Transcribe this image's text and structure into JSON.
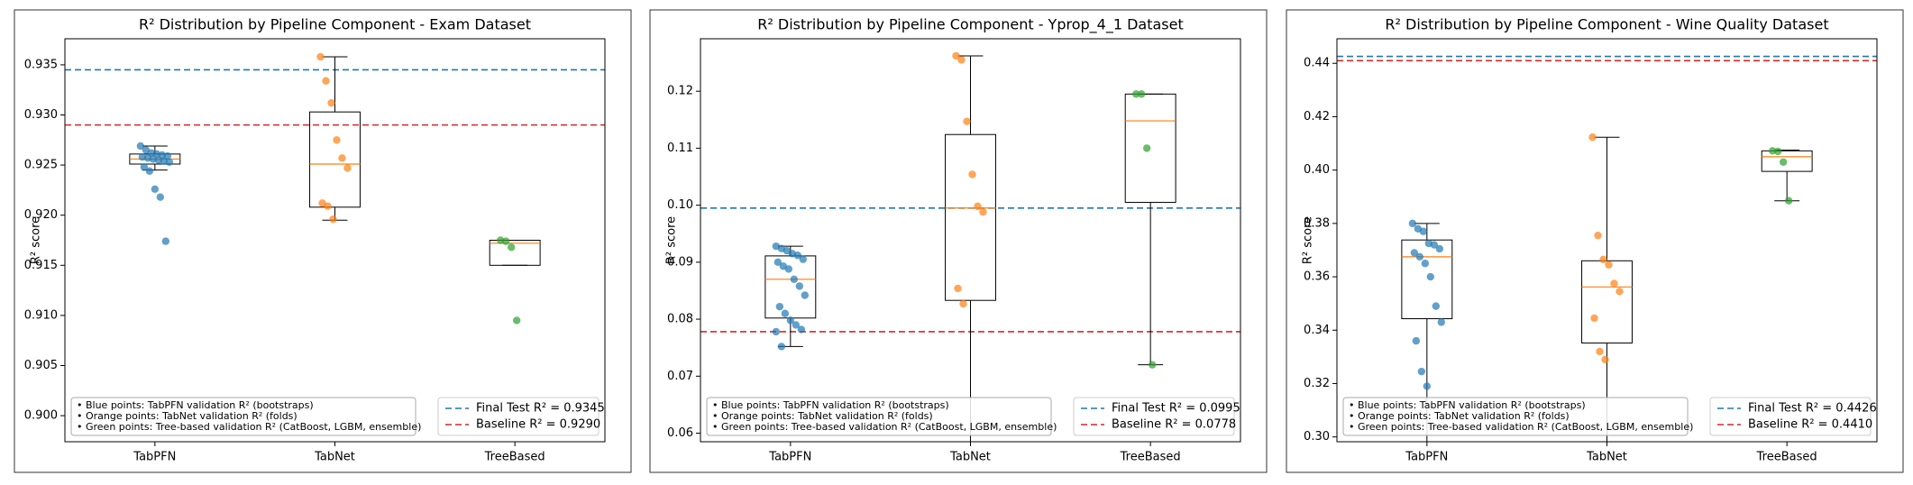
{
  "chart_data": [
    {
      "type": "box",
      "title": "R² Distribution by Pipeline Component - Exam Dataset",
      "y_label": "R² score",
      "categories": [
        "TabPFN",
        "TabNet",
        "TreeBased"
      ],
      "ylim": [
        0.8974,
        0.9376
      ],
      "yticks": [
        {
          "value": 0.9,
          "label": "0.900"
        },
        {
          "value": 0.905,
          "label": "0.905"
        },
        {
          "value": 0.91,
          "label": "0.910"
        },
        {
          "value": 0.915,
          "label": "0.915"
        },
        {
          "value": 0.92,
          "label": "0.920"
        },
        {
          "value": 0.925,
          "label": "0.925"
        },
        {
          "value": 0.93,
          "label": "0.930"
        },
        {
          "value": 0.935,
          "label": "0.935"
        }
      ],
      "median_color": "#ff7f0e",
      "boxes": [
        {
          "low": 0.9245,
          "q1": 0.9251,
          "median": 0.9256,
          "q3": 0.9261,
          "high": 0.9269,
          "color": "#1f77b4",
          "points": [
            0.9269,
            0.9265,
            0.9262,
            0.9261,
            0.926,
            0.9259,
            0.9258,
            0.9257,
            0.9256,
            0.9255,
            0.9254,
            0.9253,
            0.9248,
            0.9244,
            0.9226,
            0.9218,
            0.9174
          ]
        },
        {
          "low": 0.9195,
          "q1": 0.9208,
          "median": 0.9251,
          "q3": 0.9303,
          "high": 0.9358,
          "color": "#ff7f0e",
          "points": [
            0.9358,
            0.9334,
            0.9312,
            0.9275,
            0.9257,
            0.9247,
            0.9212,
            0.9209,
            0.9196
          ]
        },
        {
          "low": 0.915,
          "q1": 0.915,
          "median": 0.9172,
          "q3": 0.9175,
          "high": 0.9175,
          "color": "#2ca02c",
          "points": [
            0.9175,
            0.9174,
            0.9168,
            0.9095
          ]
        }
      ],
      "reference_lines": [
        {
          "label": "Final Test R² = 0.9345",
          "value": 0.9345,
          "color": "#1f77b4"
        },
        {
          "label": "Baseline R² = 0.9290",
          "value": 0.929,
          "color": "#d62728"
        }
      ],
      "legend": "lower right",
      "notes": [
        "• Blue points: TabPFN validation R² (bootstraps)",
        "• Orange points: TabNet validation R² (folds)",
        "• Green points: Tree-based validation R² (CatBoost, LGBM, ensemble)"
      ]
    },
    {
      "type": "box",
      "title": "R² Distribution by Pipeline Component - Yprop_4_1 Dataset",
      "y_label": "R² score",
      "categories": [
        "TabPFN",
        "TabNet",
        "TreeBased"
      ],
      "ylim": [
        0.0585,
        0.1292
      ],
      "yticks": [
        {
          "value": 0.06,
          "label": "0.06"
        },
        {
          "value": 0.07,
          "label": "0.07"
        },
        {
          "value": 0.08,
          "label": "0.08"
        },
        {
          "value": 0.09,
          "label": "0.09"
        },
        {
          "value": 0.1,
          "label": "0.10"
        },
        {
          "value": 0.11,
          "label": "0.11"
        },
        {
          "value": 0.12,
          "label": "0.12"
        }
      ],
      "median_color": "#ff7f0e",
      "boxes": [
        {
          "low": 0.0752,
          "q1": 0.0802,
          "median": 0.087,
          "q3": 0.0911,
          "high": 0.0928,
          "color": "#1f77b4",
          "points": [
            0.0928,
            0.0924,
            0.092,
            0.0915,
            0.0912,
            0.0905,
            0.09,
            0.0893,
            0.0888,
            0.087,
            0.0858,
            0.0842,
            0.0822,
            0.081,
            0.0798,
            0.079,
            0.0782,
            0.0778,
            0.0752
          ]
        },
        {
          "low": 0.057,
          "q1": 0.0833,
          "median": 0.0995,
          "q3": 0.1124,
          "high": 0.1262,
          "color": "#ff7f0e",
          "points": [
            0.1262,
            0.1255,
            0.1147,
            0.1054,
            0.0998,
            0.0988,
            0.0854,
            0.0827
          ]
        },
        {
          "low": 0.072,
          "q1": 0.1005,
          "median": 0.1148,
          "q3": 0.1195,
          "high": 0.1195,
          "color": "#2ca02c",
          "points": [
            0.1195,
            0.1195,
            0.11,
            0.072
          ]
        }
      ],
      "reference_lines": [
        {
          "label": "Final Test R² = 0.0995",
          "value": 0.0995,
          "color": "#1f77b4"
        },
        {
          "label": "Baseline R² = 0.0778",
          "value": 0.0778,
          "color": "#d62728"
        }
      ],
      "legend": "lower right",
      "notes": [
        "• Blue points: TabPFN validation R² (bootstraps)",
        "• Orange points: TabNet validation R² (folds)",
        "• Green points: Tree-based validation R² (CatBoost, LGBM, ensemble)"
      ]
    },
    {
      "type": "box",
      "title": "R² Distribution by Pipeline Component - Wine Quality Dataset",
      "y_label": "R² score",
      "categories": [
        "TabPFN",
        "TabNet",
        "TreeBased"
      ],
      "ylim": [
        0.2982,
        0.4492
      ],
      "yticks": [
        {
          "value": 0.3,
          "label": "0.30"
        },
        {
          "value": 0.32,
          "label": "0.32"
        },
        {
          "value": 0.34,
          "label": "0.34"
        },
        {
          "value": 0.36,
          "label": "0.36"
        },
        {
          "value": 0.38,
          "label": "0.38"
        },
        {
          "value": 0.4,
          "label": "0.40"
        },
        {
          "value": 0.42,
          "label": "0.42"
        },
        {
          "value": 0.44,
          "label": "0.44"
        }
      ],
      "median_color": "#ff7f0e",
      "boxes": [
        {
          "low": 0.296,
          "q1": 0.3443,
          "median": 0.3675,
          "q3": 0.3738,
          "high": 0.38,
          "color": "#1f77b4",
          "points": [
            0.38,
            0.378,
            0.377,
            0.3725,
            0.372,
            0.3705,
            0.369,
            0.3675,
            0.365,
            0.36,
            0.349,
            0.343,
            0.336,
            0.3245,
            0.319
          ]
        },
        {
          "low": 0.29,
          "q1": 0.3352,
          "median": 0.3562,
          "q3": 0.366,
          "high": 0.4123,
          "color": "#ff7f0e",
          "points": [
            0.4123,
            0.3755,
            0.3665,
            0.3645,
            0.3575,
            0.3545,
            0.3445,
            0.332,
            0.329
          ]
        },
        {
          "low": 0.3885,
          "q1": 0.3995,
          "median": 0.405,
          "q3": 0.4072,
          "high": 0.4075,
          "color": "#2ca02c",
          "points": [
            0.4072,
            0.407,
            0.403,
            0.3885
          ]
        }
      ],
      "reference_lines": [
        {
          "label": "Final Test R² = 0.4426",
          "value": 0.4426,
          "color": "#1f77b4"
        },
        {
          "label": "Baseline R² = 0.4410",
          "value": 0.441,
          "color": "#d62728"
        }
      ],
      "legend": "lower right",
      "notes": [
        "• Blue points: TabPFN validation R² (bootstraps)",
        "• Orange points: TabNet validation R² (folds)",
        "• Green points: Tree-based validation R² (CatBoost, LGBM, ensemble)"
      ]
    }
  ]
}
